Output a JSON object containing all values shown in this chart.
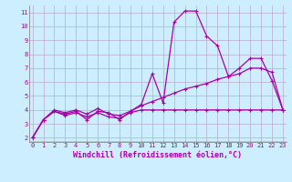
{
  "xlabel": "Windchill (Refroidissement éolien,°C)",
  "bg_color": "#cceeff",
  "grid_color": "#bbaacc",
  "line_color": "#aa00aa",
  "x_ticks": [
    0,
    1,
    2,
    3,
    4,
    5,
    6,
    7,
    8,
    9,
    10,
    11,
    12,
    13,
    14,
    15,
    16,
    17,
    18,
    19,
    20,
    21,
    22,
    23
  ],
  "y_ticks": [
    2,
    3,
    4,
    5,
    6,
    7,
    8,
    9,
    10,
    11
  ],
  "ylim": [
    1.7,
    11.5
  ],
  "xlim": [
    -0.3,
    23.3
  ],
  "curve1": [
    2.0,
    3.3,
    3.9,
    3.7,
    3.9,
    3.3,
    3.9,
    3.8,
    3.3,
    3.9,
    4.4,
    6.6,
    4.5,
    10.3,
    11.1,
    11.1,
    9.3,
    8.6,
    6.4,
    7.0,
    7.7,
    7.7,
    6.1,
    4.0
  ],
  "curve2": [
    2.0,
    3.3,
    4.0,
    3.8,
    4.0,
    3.7,
    4.1,
    3.7,
    3.6,
    3.9,
    4.3,
    4.6,
    4.9,
    5.2,
    5.5,
    5.7,
    5.9,
    6.2,
    6.4,
    6.6,
    7.0,
    7.0,
    6.7,
    4.0
  ],
  "curve3": [
    2.0,
    3.3,
    3.9,
    3.6,
    3.8,
    3.5,
    3.8,
    3.5,
    3.4,
    3.8,
    4.0,
    4.0,
    4.0,
    4.0,
    4.0,
    4.0,
    4.0,
    4.0,
    4.0,
    4.0,
    4.0,
    4.0,
    4.0,
    4.0
  ],
  "marker": "+",
  "linewidth": 0.9,
  "markersize": 3,
  "markeredgewidth": 0.8,
  "tick_fontsize": 5.0,
  "xlabel_fontsize": 6.0
}
